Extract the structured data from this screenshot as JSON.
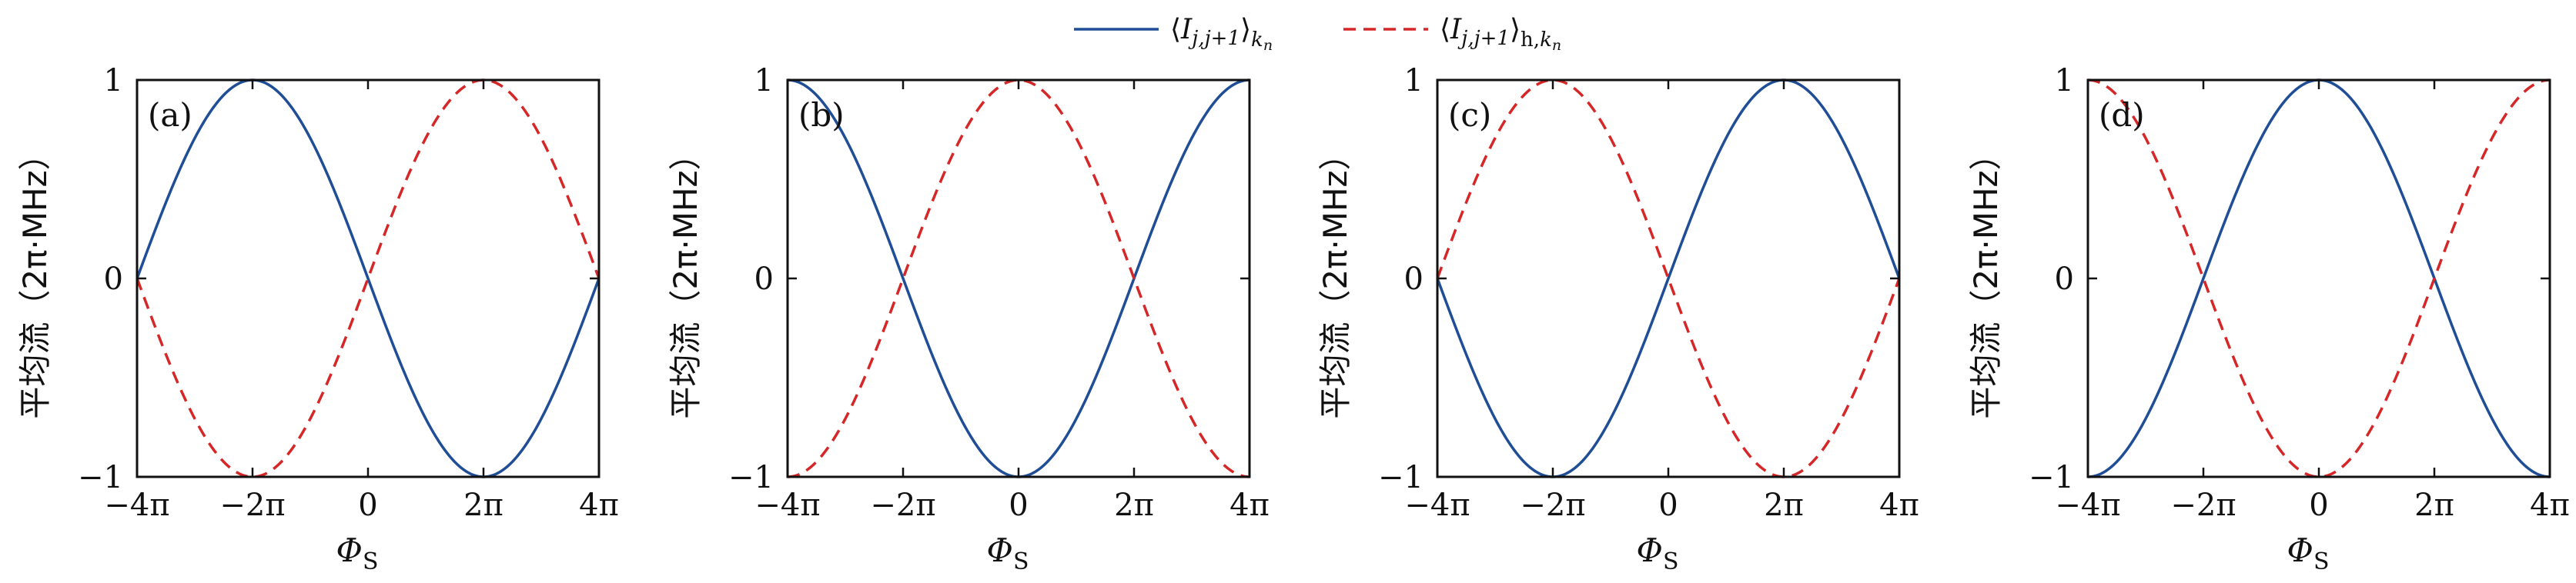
{
  "legend": {
    "items": [
      {
        "label": "⟨I_{j,j+1}⟩_{k_n}",
        "color": "#1f4e96",
        "dash": "solid"
      },
      {
        "label": "⟨I_{j,j+1}⟩_{h,k_n}",
        "color": "#d62728",
        "dash": "dashed"
      }
    ]
  },
  "chart_data": [
    {
      "type": "line",
      "panel_label": "(a)",
      "xlabel": "Φ_S",
      "ylabel": "平均流（2π·MHz）",
      "xlim": [
        -12.566,
        12.566
      ],
      "ylim": [
        -1,
        1
      ],
      "x_ticks": [
        "−4π",
        "−2π",
        "0",
        "2π",
        "4π"
      ],
      "y_ticks": [
        "−1",
        "0",
        "1"
      ],
      "grid": false,
      "series": [
        {
          "name": "⟨I_{j,j+1}⟩_{k_n}",
          "formula": "-sin(x/4)",
          "color": "#1f4e96",
          "dash": "solid",
          "x": [
            "−4π",
            "−3π",
            "−2π",
            "−π",
            "0",
            "π",
            "2π",
            "3π",
            "4π"
          ],
          "values": [
            0,
            0.707,
            1,
            0.707,
            0,
            -0.707,
            -1,
            -0.707,
            0
          ]
        },
        {
          "name": "⟨I_{j,j+1}⟩_{h,k_n}",
          "formula": "sin(x/4)",
          "color": "#d62728",
          "dash": "dashed",
          "x": [
            "−4π",
            "−3π",
            "−2π",
            "−π",
            "0",
            "π",
            "2π",
            "3π",
            "4π"
          ],
          "values": [
            0,
            -0.707,
            -1,
            -0.707,
            0,
            0.707,
            1,
            0.707,
            0
          ]
        }
      ]
    },
    {
      "type": "line",
      "panel_label": "(b)",
      "xlabel": "Φ_S",
      "ylabel": "平均流（2π·MHz）",
      "xlim": [
        -12.566,
        12.566
      ],
      "ylim": [
        -1,
        1
      ],
      "x_ticks": [
        "−4π",
        "−2π",
        "0",
        "2π",
        "4π"
      ],
      "y_ticks": [
        "−1",
        "0",
        "1"
      ],
      "grid": false,
      "series": [
        {
          "name": "⟨I_{j,j+1}⟩_{k_n}",
          "formula": "-cos(x/4)",
          "color": "#1f4e96",
          "dash": "solid",
          "x": [
            "−4π",
            "−3π",
            "−2π",
            "−π",
            "0",
            "π",
            "2π",
            "3π",
            "4π"
          ],
          "values": [
            1,
            0.707,
            0,
            -0.707,
            -1,
            -0.707,
            0,
            0.707,
            1
          ]
        },
        {
          "name": "⟨I_{j,j+1}⟩_{h,k_n}",
          "formula": "cos(x/4)",
          "color": "#d62728",
          "dash": "dashed",
          "x": [
            "−4π",
            "−3π",
            "−2π",
            "−π",
            "0",
            "π",
            "2π",
            "3π",
            "4π"
          ],
          "values": [
            -1,
            -0.707,
            0,
            0.707,
            1,
            0.707,
            0,
            -0.707,
            -1
          ]
        }
      ]
    },
    {
      "type": "line",
      "panel_label": "(c)",
      "xlabel": "Φ_S",
      "ylabel": "平均流（2π·MHz）",
      "xlim": [
        -12.566,
        12.566
      ],
      "ylim": [
        -1,
        1
      ],
      "x_ticks": [
        "−4π",
        "−2π",
        "0",
        "2π",
        "4π"
      ],
      "y_ticks": [
        "−1",
        "0",
        "1"
      ],
      "grid": false,
      "series": [
        {
          "name": "⟨I_{j,j+1}⟩_{k_n}",
          "formula": "sin(x/4)",
          "color": "#1f4e96",
          "dash": "solid",
          "x": [
            "−4π",
            "−3π",
            "−2π",
            "−π",
            "0",
            "π",
            "2π",
            "3π",
            "4π"
          ],
          "values": [
            0,
            -0.707,
            -1,
            -0.707,
            0,
            0.707,
            1,
            0.707,
            0
          ]
        },
        {
          "name": "⟨I_{j,j+1}⟩_{h,k_n}",
          "formula": "-sin(x/4)",
          "color": "#d62728",
          "dash": "dashed",
          "x": [
            "−4π",
            "−3π",
            "−2π",
            "−π",
            "0",
            "π",
            "2π",
            "3π",
            "4π"
          ],
          "values": [
            0,
            0.707,
            1,
            0.707,
            0,
            -0.707,
            -1,
            -0.707,
            0
          ]
        }
      ]
    },
    {
      "type": "line",
      "panel_label": "(d)",
      "xlabel": "Φ_S",
      "ylabel": "平均流（2π·MHz）",
      "xlim": [
        -12.566,
        12.566
      ],
      "ylim": [
        -1,
        1
      ],
      "x_ticks": [
        "−4π",
        "−2π",
        "0",
        "2π",
        "4π"
      ],
      "y_ticks": [
        "−1",
        "0",
        "1"
      ],
      "grid": false,
      "series": [
        {
          "name": "⟨I_{j,j+1}⟩_{k_n}",
          "formula": "cos(x/4)",
          "color": "#1f4e96",
          "dash": "solid",
          "x": [
            "−4π",
            "−3π",
            "−2π",
            "−π",
            "0",
            "π",
            "2π",
            "3π",
            "4π"
          ],
          "values": [
            -1,
            -0.707,
            0,
            0.707,
            1,
            0.707,
            0,
            -0.707,
            -1
          ]
        },
        {
          "name": "⟨I_{j,j+1}⟩_{h,k_n}",
          "formula": "-cos(x/4)",
          "color": "#d62728",
          "dash": "dashed",
          "x": [
            "−4π",
            "−3π",
            "−2π",
            "−π",
            "0",
            "π",
            "2π",
            "3π",
            "4π"
          ],
          "values": [
            1,
            0.707,
            0,
            -0.707,
            -1,
            -0.707,
            0,
            0.707,
            1
          ]
        }
      ]
    }
  ]
}
